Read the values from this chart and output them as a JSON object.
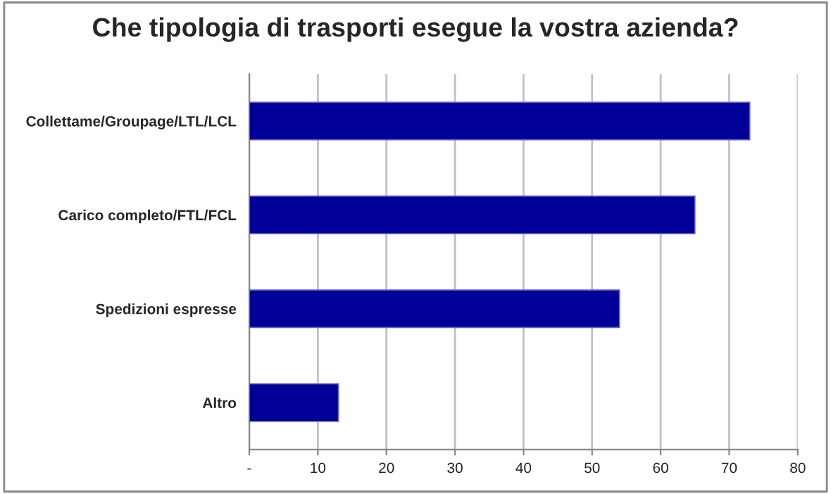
{
  "chart_data": {
    "type": "bar",
    "orientation": "horizontal",
    "title": "Che tipologia di trasporti esegue la vostra azienda?",
    "categories": [
      "Collettame/Groupage/LTL/LCL",
      "Carico completo/FTL/FCL",
      "Spedizioni espresse",
      "Altro"
    ],
    "values": [
      73,
      65,
      54,
      13
    ],
    "color": "#000099",
    "xlim": [
      0,
      80
    ],
    "xticks": [
      {
        "value": 0,
        "label": "-"
      },
      10,
      20,
      30,
      40,
      50,
      60,
      70,
      80
    ],
    "grid": "x",
    "legend": false
  }
}
